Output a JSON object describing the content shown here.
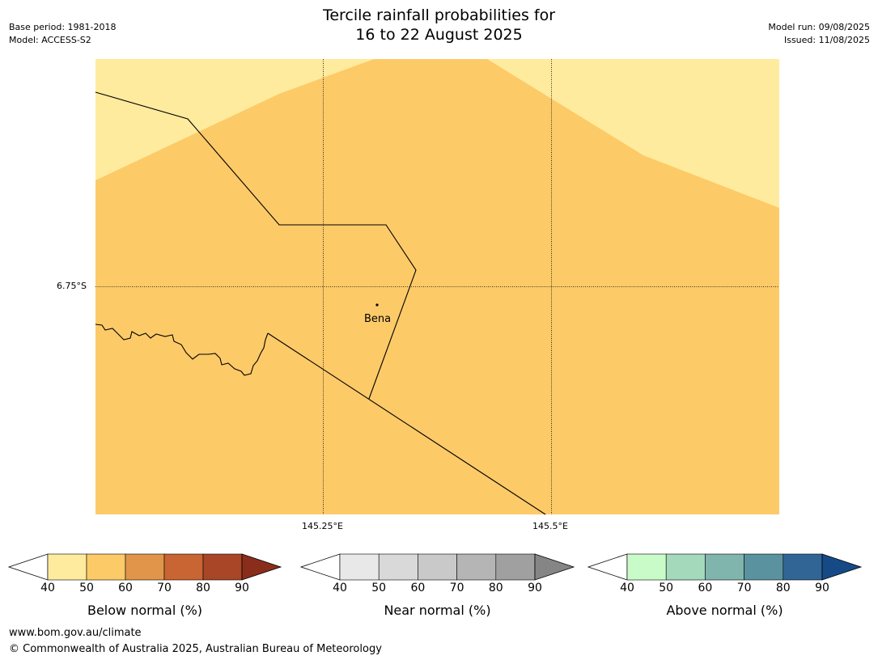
{
  "title_line1": "Tercile rainfall probabilities for",
  "title_line2": "16 to 22 August 2025",
  "base_period": "Base period: 1981-2018",
  "model": "Model: ACCESS-S2",
  "model_run": "Model run: 09/08/2025",
  "issued": "Issued: 11/08/2025",
  "map": {
    "lat_label": "6.75°S",
    "lon_labels": [
      "145.25°E",
      "145.5°E"
    ],
    "place_label": "Bena",
    "colors": {
      "below_40_50": "#ffeb9e",
      "below_50_60": "#fdca68"
    }
  },
  "colorbars": [
    {
      "label": "Below normal (%)",
      "ticks": [
        "40",
        "50",
        "60",
        "70",
        "80",
        "90"
      ],
      "colors": [
        "#ffeb9e",
        "#fdca68",
        "#e0954a",
        "#c96532",
        "#a84627",
        "#8a2d1b"
      ]
    },
    {
      "label": "Near normal (%)",
      "ticks": [
        "40",
        "50",
        "60",
        "70",
        "80",
        "90"
      ],
      "colors": [
        "#e8e8e8",
        "#d9d9d9",
        "#c9c9c9",
        "#b5b5b5",
        "#a0a0a0",
        "#858585"
      ]
    },
    {
      "label": "Above normal (%)",
      "ticks": [
        "40",
        "50",
        "60",
        "70",
        "80",
        "90"
      ],
      "colors": [
        "#c9fbc9",
        "#a4d9bb",
        "#80b5ae",
        "#5a92a0",
        "#316595",
        "#164a86"
      ]
    }
  ],
  "footer_url": "www.bom.gov.au/climate",
  "footer_copyright": "© Commonwealth of Australia 2025, Australian Bureau of Meteorology"
}
